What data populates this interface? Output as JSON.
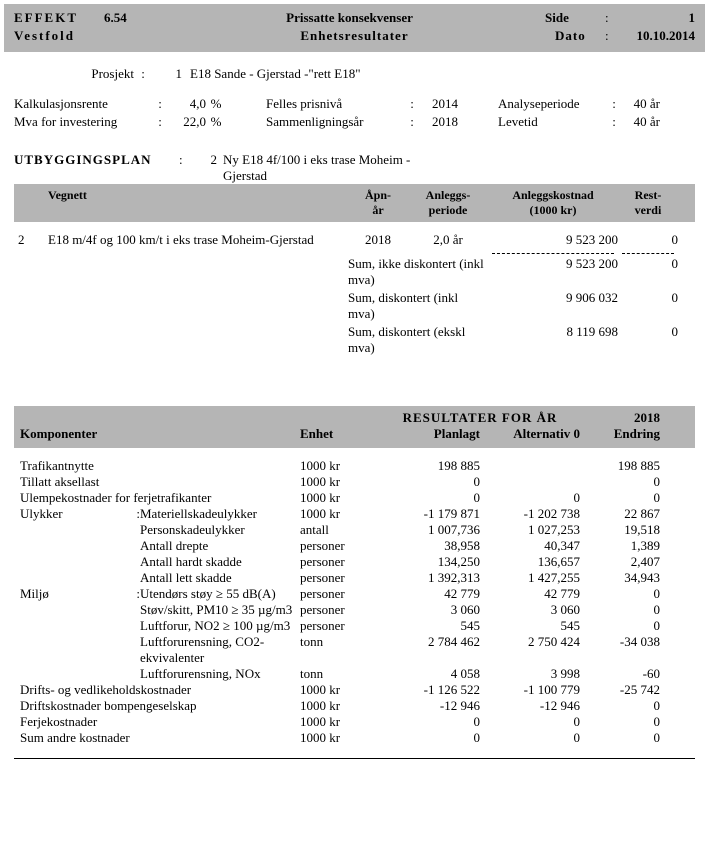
{
  "header": {
    "app": "EFFEKT",
    "version": "6.54",
    "title1": "Prissatte konsekvenser",
    "side_label": "Side",
    "side_value": "1",
    "region": "Vestfold",
    "title2": "Enhetsresultater",
    "date_label": "Dato",
    "date_value": "10.10.2014"
  },
  "project": {
    "label": "Prosjekt",
    "num": "1",
    "name": "E18 Sande - Gjerstad -\"rett E18\""
  },
  "params": {
    "kalkrente_label": "Kalkulasjonsrente",
    "kalkrente_val": "4,0",
    "pct": "%",
    "mva_label": "Mva for investering",
    "mva_val": "22,0",
    "prisniv_label": "Felles prisnivå",
    "prisniv_val": "2014",
    "sammen_label": "Sammenligningsår",
    "sammen_val": "2018",
    "analyse_label": "Analyseperiode",
    "analyse_val": "40 år",
    "levetid_label": "Levetid",
    "levetid_val": "40 år"
  },
  "plan": {
    "title": "UTBYGGINGSPLAN",
    "num": "2",
    "name_l1": "Ny E18 4f/100 i eks trase Moheim -",
    "name_l2": "Gjerstad"
  },
  "veg": {
    "h_vegnett": "Vegnett",
    "h_apn1": "Åpn-",
    "h_apn2": "år",
    "h_anl1": "Anleggs-",
    "h_anl2": "periode",
    "h_kost1": "Anleggskostnad",
    "h_kost2": "(1000 kr)",
    "h_rest1": "Rest-",
    "h_rest2": "verdi",
    "row": {
      "num": "2",
      "name": "E18 m/4f og 100 km/t i eks trase Moheim-Gjerstad",
      "apn": "2018",
      "periode": "2,0 år",
      "kost": "9 523 200",
      "rest": "0"
    },
    "sums": {
      "s1_label": "Sum, ikke diskontert (inkl mva)",
      "s1_kost": "9 523 200",
      "s1_rest": "0",
      "s2_label": "Sum, diskontert (inkl mva)",
      "s2_kost": "9 906 032",
      "s2_rest": "0",
      "s3_label": "Sum, diskontert (ekskl mva)",
      "s3_kost": "8 119 698",
      "s3_rest": "0"
    }
  },
  "comp": {
    "super": "RESULTATER FOR ÅR",
    "year": "2018",
    "h_komp": "Komponenter",
    "h_enhet": "Enhet",
    "h_plan": "Planlagt",
    "h_alt0": "Alternativ 0",
    "h_endr": "Endring",
    "rows": [
      {
        "cat": "Trafikantnytte",
        "sub": "",
        "enhet": "1000 kr",
        "plan": "198 885",
        "alt0": "",
        "endr": "198 885"
      },
      {
        "cat": "Tillatt aksellast",
        "sub": "",
        "enhet": "1000 kr",
        "plan": "0",
        "alt0": "",
        "endr": "0"
      },
      {
        "cat": "Ulempekostnader for ferjetrafikanter",
        "sub": "",
        "enhet": "1000 kr",
        "plan": "0",
        "alt0": "0",
        "endr": "0",
        "full": true
      },
      {
        "cat": "Ulykker",
        "sub": "Materiellskadeulykker",
        "enhet": "1000 kr",
        "plan": "-1 179 871",
        "alt0": "-1 202 738",
        "endr": "22 867",
        "colon": true
      },
      {
        "cat": "",
        "sub": "Personskadeulykker",
        "enhet": "antall",
        "plan": "1 007,736",
        "alt0": "1 027,253",
        "endr": "19,518"
      },
      {
        "cat": "",
        "sub": "Antall drepte",
        "enhet": "personer",
        "plan": "38,958",
        "alt0": "40,347",
        "endr": "1,389"
      },
      {
        "cat": "",
        "sub": "Antall hardt skadde",
        "enhet": "personer",
        "plan": "134,250",
        "alt0": "136,657",
        "endr": "2,407"
      },
      {
        "cat": "",
        "sub": "Antall lett skadde",
        "enhet": "personer",
        "plan": "1 392,313",
        "alt0": "1 427,255",
        "endr": "34,943"
      },
      {
        "cat": "Miljø",
        "sub": "Utendørs støy   ≥  55 dB(A)",
        "enhet": "personer",
        "plan": "42 779",
        "alt0": "42 779",
        "endr": "0",
        "colon": true
      },
      {
        "cat": "",
        "sub": "Støv/skitt, PM10   ≥  35 µg/m3",
        "enhet": "personer",
        "plan": "3 060",
        "alt0": "3 060",
        "endr": "0"
      },
      {
        "cat": "",
        "sub": "Luftforur, NO2   ≥   100 µg/m3",
        "enhet": "personer",
        "plan": "545",
        "alt0": "545",
        "endr": "0"
      },
      {
        "cat": "",
        "sub": "Luftforurensning, CO2-ekvivalenter",
        "enhet": "tonn",
        "plan": "2 784 462",
        "alt0": "2 750 424",
        "endr": "-34 038"
      },
      {
        "cat": "",
        "sub": "Luftforurensning, NOx",
        "enhet": "tonn",
        "plan": "4 058",
        "alt0": "3 998",
        "endr": "-60"
      },
      {
        "cat": "Drifts- og vedlikeholdskostnader",
        "sub": "",
        "enhet": "1000 kr",
        "plan": "-1 126 522",
        "alt0": "-1 100 779",
        "endr": "-25 742",
        "full": true
      },
      {
        "cat": "Driftskostnader bompengeselskap",
        "sub": "",
        "enhet": "1000 kr",
        "plan": "-12 946",
        "alt0": "-12 946",
        "endr": "0",
        "full": true
      },
      {
        "cat": "Ferjekostnader",
        "sub": "",
        "enhet": "1000 kr",
        "plan": "0",
        "alt0": "0",
        "endr": "0"
      },
      {
        "cat": "Sum andre kostnader",
        "sub": "",
        "enhet": "1000 kr",
        "plan": "0",
        "alt0": "0",
        "endr": "0"
      }
    ]
  }
}
